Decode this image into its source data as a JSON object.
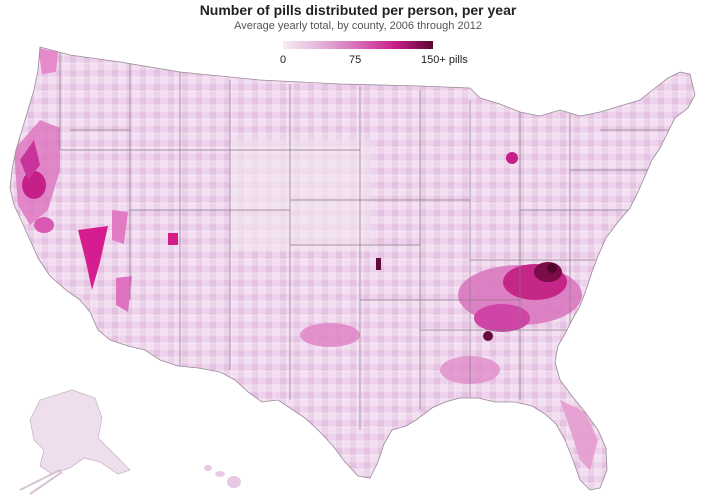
{
  "title": "Number of pills distributed per person, per year",
  "subtitle": "Average yearly total, by county, 2006 through 2012",
  "legend": {
    "ticks": [
      "0",
      "75",
      "150+ pills"
    ],
    "min": 0,
    "max": 150,
    "colors": [
      "#f6ecf5",
      "#e2b3d8",
      "#d96cb8",
      "#c71e8c",
      "#5a0630"
    ]
  }
}
